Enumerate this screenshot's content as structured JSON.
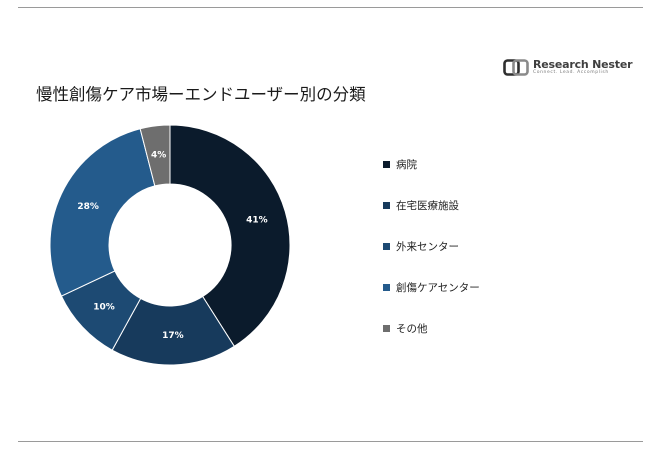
{
  "title": "慢性創傷ケア市場ーエンドユーザー別の分類",
  "logo": {
    "name": "Research Nester",
    "tagline": "Connect. Lead. Accomplish",
    "icon": "research-nester-logo-icon"
  },
  "colors": {
    "page_background": "#ffffff",
    "rule": "#9a9a9a",
    "series": [
      "#0b1b2c",
      "#173a5c",
      "#1d4a73",
      "#245b8c",
      "#6e6e6e"
    ]
  },
  "chart_data": {
    "type": "pie",
    "donut": true,
    "title": "慢性創傷ケア市場ーエンドユーザー別の分類",
    "legend_position": "right",
    "start_angle_deg": 0,
    "direction": "clockwise",
    "categories": [
      "病院",
      "在宅医療施設",
      "外来センター",
      "創傷ケアセンター",
      "その他"
    ],
    "values": [
      41,
      17,
      10,
      28,
      4
    ],
    "slice_order": [
      "病院",
      "在宅医療施設",
      "外来センター",
      "創傷ケアセンター",
      "その他"
    ],
    "data_labels": [
      "41%",
      "17%",
      "10%",
      "28%",
      "4%"
    ],
    "unit": "%"
  }
}
